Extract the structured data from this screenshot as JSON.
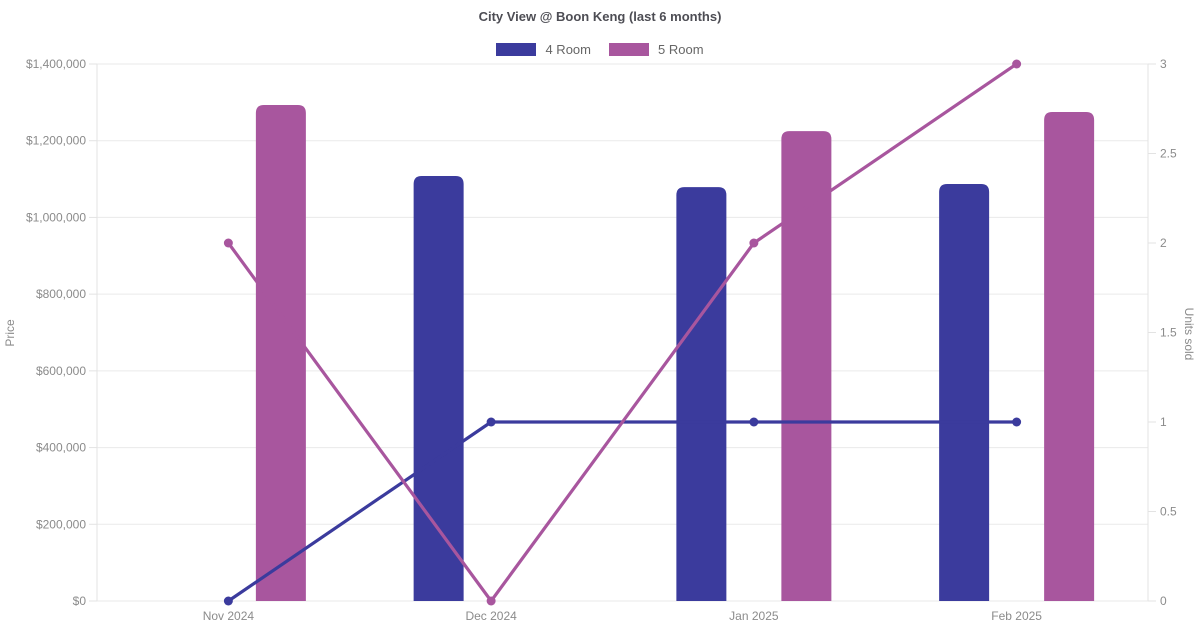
{
  "title": "City View @ Boon Keng (last 6 months)",
  "legend": {
    "items": [
      {
        "label": "4 Room",
        "color": "#3b3b9d"
      },
      {
        "label": "5 Room",
        "color": "#a8569e"
      }
    ]
  },
  "chart_data": {
    "type": "bar+line",
    "title": "City View @ Boon Keng (last 6 months)",
    "categories": [
      "Nov 2024",
      "Dec 2024",
      "Jan 2025",
      "Feb 2025"
    ],
    "series": [
      {
        "name": "4 Room",
        "kind": "bar",
        "axis": "left",
        "color": "#3b3b9d",
        "values": [
          null,
          1108000,
          1079000,
          1087000
        ]
      },
      {
        "name": "5 Room",
        "kind": "bar",
        "axis": "left",
        "color": "#a8569e",
        "values": [
          1293000,
          null,
          1225000,
          1275000
        ]
      },
      {
        "name": "4 Room",
        "kind": "line",
        "axis": "right",
        "color": "#3b3b9d",
        "values": [
          0,
          1,
          1,
          1
        ]
      },
      {
        "name": "5 Room",
        "kind": "line",
        "axis": "right",
        "color": "#a8569e",
        "values": [
          2,
          0,
          2,
          3
        ]
      }
    ],
    "left_axis": {
      "label": "Price",
      "min": 0,
      "max": 1400000,
      "tick_step": 200000,
      "tick_format": "usd",
      "tick_labels": [
        "$0",
        "$200,000",
        "$400,000",
        "$600,000",
        "$800,000",
        "$1,000,000",
        "$1,200,000",
        "$1,400,000"
      ]
    },
    "right_axis": {
      "label": "Units sold",
      "min": 0,
      "max": 3,
      "tick_step": 0.5,
      "tick_labels": [
        "0",
        "0.5",
        "1",
        "1.5",
        "2",
        "2.5",
        "3"
      ]
    },
    "grid": true,
    "legend_position": "top",
    "colors": {
      "grid_line": "#eaeaea",
      "axis_line": "#e3e3e3",
      "tick_text": "#8b8b8b",
      "title_text": "#4d4d54"
    }
  }
}
